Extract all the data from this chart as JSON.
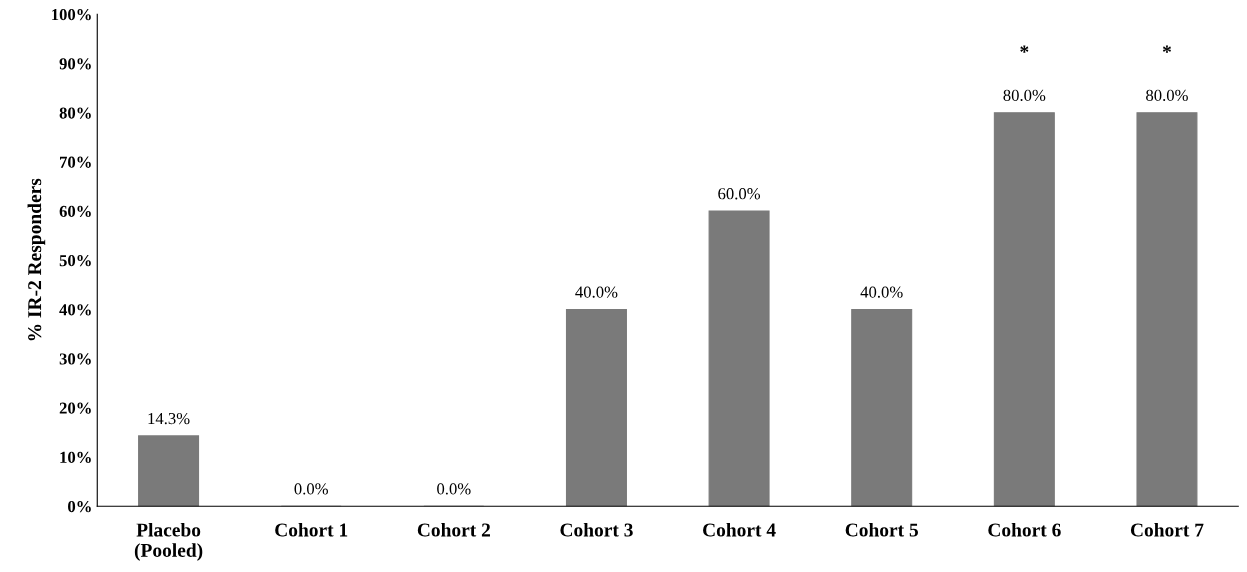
{
  "chart_data": {
    "type": "bar",
    "ylabel": "% IR-2 Responders",
    "categories": [
      "Placebo\n(Pooled)",
      "Cohort 1",
      "Cohort 2",
      "Cohort 3",
      "Cohort 4",
      "Cohort 5",
      "Cohort 6",
      "Cohort 7"
    ],
    "values": [
      14.3,
      0,
      0,
      40,
      60,
      40,
      80,
      80
    ],
    "value_labels": [
      "14.3%",
      "0.0%",
      "0.0%",
      "40.0%",
      "60.0%",
      "40.0%",
      "80.0%",
      "80.0%"
    ],
    "color": "#7a7a7a",
    "ylim": [
      0,
      100
    ],
    "yticks": [
      {
        "value": 0,
        "label": "0%"
      },
      {
        "value": 10,
        "label": "10%"
      },
      {
        "value": 20,
        "label": "20%"
      },
      {
        "value": 30,
        "label": "30%"
      },
      {
        "value": 40,
        "label": "40%"
      },
      {
        "value": 50,
        "label": "50%"
      },
      {
        "value": 60,
        "label": "60%"
      },
      {
        "value": 70,
        "label": "70%"
      },
      {
        "value": 80,
        "label": "80%"
      },
      {
        "value": 90,
        "label": "90%"
      },
      {
        "value": 100,
        "label": "100%"
      }
    ],
    "annotations": [
      "*",
      "*"
    ],
    "grid": false
  }
}
